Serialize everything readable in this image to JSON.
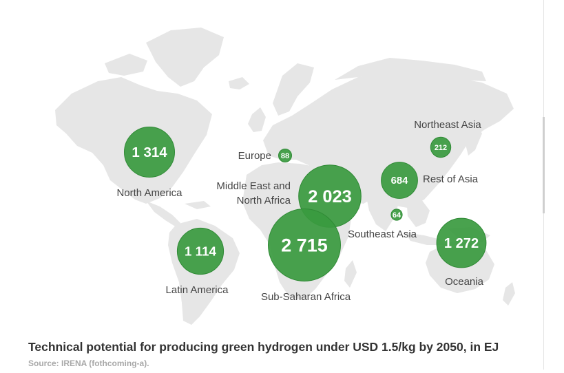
{
  "caption": "Technical potential for producing green hydrogen under USD 1.5/kg by 2050, in EJ",
  "source": "Source: IRENA (fothcoming-a).",
  "colors": {
    "land": "#e6e6e6",
    "bubble": "#3a9a3f",
    "bubble_stroke": "#2f8a35",
    "label": "#444444",
    "value": "#ffffff"
  },
  "regions": [
    {
      "id": "north-america",
      "name": "North America",
      "value": 1314,
      "value_text": "1 314"
    },
    {
      "id": "latin-america",
      "name": "Latin America",
      "value": 1114,
      "value_text": "1 114"
    },
    {
      "id": "europe",
      "name": "Europe",
      "value": 88,
      "value_text": "88"
    },
    {
      "id": "middle-east-north-africa",
      "name": "Middle East and North Africa",
      "name_lines": [
        "Middle East and",
        "North Africa"
      ],
      "value": 2023,
      "value_text": "2 023"
    },
    {
      "id": "sub-saharan-africa",
      "name": "Sub-Saharan Africa",
      "value": 2715,
      "value_text": "2 715"
    },
    {
      "id": "rest-of-asia",
      "name": "Rest of Asia",
      "value": 684,
      "value_text": "684"
    },
    {
      "id": "northeast-asia",
      "name": "Northeast Asia",
      "value": 212,
      "value_text": "212"
    },
    {
      "id": "southeast-asia",
      "name": "Southeast Asia",
      "value": 64,
      "value_text": "64"
    },
    {
      "id": "oceania",
      "name": "Oceania",
      "value": 1272,
      "value_text": "1 272"
    }
  ]
}
